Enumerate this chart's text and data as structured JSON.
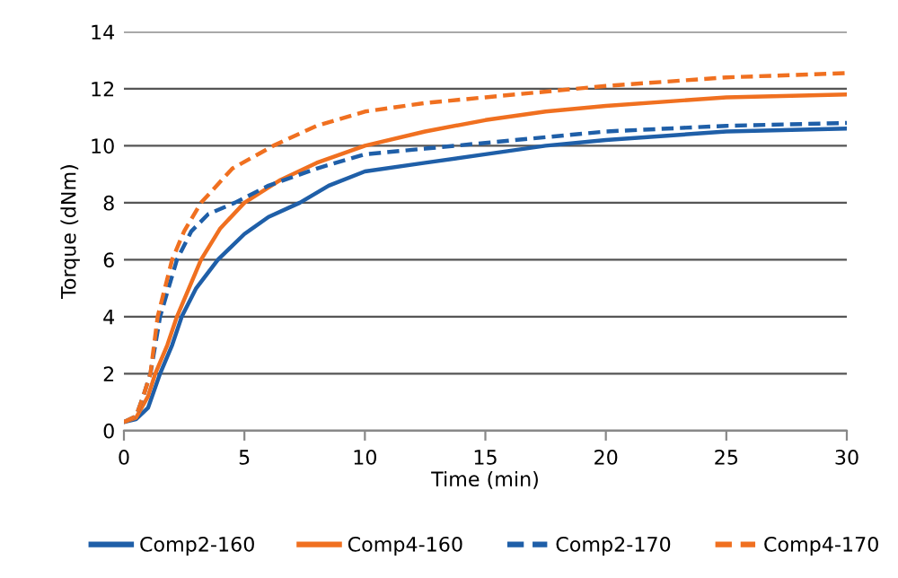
{
  "chart_data": {
    "type": "line",
    "xlabel": "Time (min)",
    "ylabel": "Torque (dNm)",
    "xlim": [
      0,
      30
    ],
    "xticks": [
      0,
      5,
      10,
      15,
      20,
      25,
      30
    ],
    "ylim": [
      0,
      14
    ],
    "yticks": [
      0,
      2,
      4,
      6,
      8,
      10,
      12,
      14
    ],
    "grid": "y",
    "legend": "bottom",
    "series": [
      {
        "name": "Comp2-160",
        "color": "#1f5fa8",
        "line_style": "solid",
        "x": [
          0,
          0.5,
          1,
          1.5,
          2,
          2.4,
          3,
          3.9,
          5,
          6,
          7.3,
          8.5,
          10,
          12.5,
          15,
          17.5,
          20,
          25,
          30
        ],
        "values": [
          0.3,
          0.4,
          0.8,
          2,
          3,
          4,
          5,
          6,
          6.9,
          7.5,
          8,
          8.6,
          9.1,
          9.4,
          9.7,
          10,
          10.2,
          10.5,
          10.6
        ]
      },
      {
        "name": "Comp4-160",
        "color": "#f07020",
        "line_style": "solid",
        "x": [
          0,
          0.5,
          1,
          1.3,
          1.8,
          2.2,
          2.7,
          3.2,
          4,
          5,
          6.5,
          8,
          10,
          12.5,
          15,
          17.5,
          20,
          25,
          30
        ],
        "values": [
          0.3,
          0.45,
          1.2,
          2,
          3,
          4,
          5,
          6,
          7.1,
          8,
          8.8,
          9.4,
          10,
          10.5,
          10.9,
          11.2,
          11.4,
          11.7,
          11.8
        ]
      },
      {
        "name": "Comp2-170",
        "color": "#1f5fa8",
        "line_style": "dashed",
        "x": [
          0,
          0.5,
          0.8,
          1.1,
          1.5,
          2.2,
          2.8,
          3.5,
          4.6,
          6,
          8,
          10,
          12.5,
          15,
          20,
          25,
          30
        ],
        "values": [
          0.3,
          0.5,
          1.2,
          2,
          4,
          6,
          7,
          7.6,
          8,
          8.6,
          9.2,
          9.7,
          9.9,
          10.1,
          10.5,
          10.7,
          10.8
        ]
      },
      {
        "name": "Comp4-170",
        "color": "#f07020",
        "line_style": "dashed",
        "x": [
          0,
          0.5,
          0.8,
          1.1,
          1.4,
          2,
          2.5,
          3.2,
          4.5,
          6.2,
          8,
          10,
          12.5,
          15,
          20,
          25,
          30
        ],
        "values": [
          0.3,
          0.5,
          1.2,
          2,
          4,
          6,
          7,
          8,
          9.2,
          10,
          10.7,
          11.2,
          11.5,
          11.7,
          12.1,
          12.4,
          12.55
        ]
      }
    ]
  }
}
